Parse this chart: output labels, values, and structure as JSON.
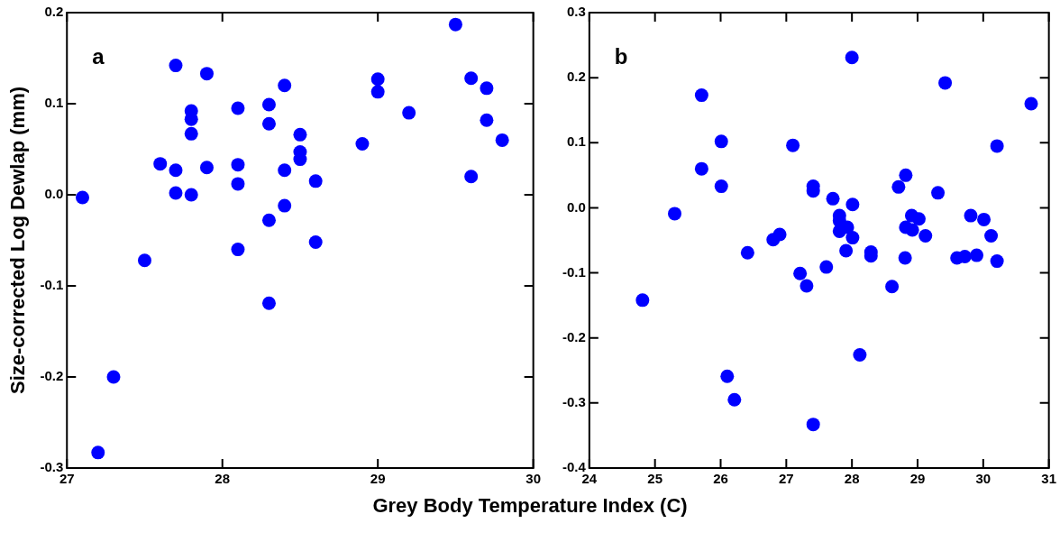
{
  "chart_data": [
    {
      "type": "scatter",
      "ylabel": "Size-corrected Log Dewlap (mm)",
      "xlabel": "Grey Body Temperature Index (C)",
      "annotations": [
        "a"
      ],
      "marker": "circle",
      "grid": false,
      "legend": false,
      "xlim": [
        27,
        30
      ],
      "xticks": [
        27,
        28,
        29,
        30
      ],
      "ylim": [
        -0.3,
        0.2
      ],
      "yticks": [
        {
          "value": -0.3,
          "label": "-0.3"
        },
        {
          "value": -0.2,
          "label": "-0.2"
        },
        {
          "value": -0.1,
          "label": "-0.1"
        },
        {
          "value": 0,
          "label": "0.0"
        },
        {
          "value": 0.1,
          "label": "0.1"
        },
        {
          "value": 0.2,
          "label": "0.2"
        }
      ],
      "series": [
        {
          "color": "#0000ff",
          "x": [
            27.1,
            27.2,
            27.3,
            27.5,
            27.6,
            27.7,
            27.7,
            27.7,
            27.8,
            27.8,
            27.8,
            27.8,
            27.9,
            27.9,
            28.1,
            28.1,
            28.1,
            28.1,
            28.3,
            28.3,
            28.3,
            28.3,
            28.4,
            28.4,
            28.4,
            28.5,
            28.5,
            28.5,
            28.6,
            28.6,
            28.9,
            29.0,
            29.0,
            29.2,
            29.5,
            29.6,
            29.6,
            29.7,
            29.7,
            29.8
          ],
          "values": [
            -0.003,
            -0.283,
            -0.2,
            -0.072,
            0.034,
            0.142,
            0.027,
            0.002,
            0.092,
            0.083,
            0.067,
            0.0,
            0.133,
            0.03,
            0.095,
            0.033,
            0.012,
            -0.06,
            0.099,
            0.078,
            -0.028,
            -0.119,
            0.12,
            0.027,
            -0.012,
            0.066,
            0.047,
            0.039,
            0.015,
            -0.052,
            0.056,
            0.127,
            0.113,
            0.09,
            0.187,
            0.128,
            0.02,
            0.117,
            0.082,
            0.06
          ]
        }
      ]
    },
    {
      "type": "scatter",
      "annotations": [
        "b"
      ],
      "marker": "circle",
      "grid": false,
      "legend": false,
      "xlim": [
        24,
        31
      ],
      "xticks": [
        24,
        25,
        26,
        27,
        28,
        29,
        30,
        31
      ],
      "ylim": [
        -0.4,
        0.3
      ],
      "yticks": [
        {
          "value": -0.4,
          "label": "-0.4"
        },
        {
          "value": -0.3,
          "label": "-0.3"
        },
        {
          "value": -0.2,
          "label": "-0.2"
        },
        {
          "value": -0.1,
          "label": "-0.1"
        },
        {
          "value": 0,
          "label": "0.0"
        },
        {
          "value": 0.1,
          "label": "0.1"
        },
        {
          "value": 0.2,
          "label": "0.2"
        },
        {
          "value": 0.3,
          "label": "0.3"
        }
      ],
      "series": [
        {
          "color": "#0000ff",
          "x": [
            28.0,
            29.42,
            30.73,
            25.71,
            26.01,
            27.1,
            30.21,
            25.71,
            26.01,
            27.41,
            27.41,
            27.71,
            28.01,
            28.82,
            28.71,
            29.31,
            25.3,
            27.81,
            27.81,
            28.91,
            29.02,
            29.81,
            30.01,
            27.93,
            27.81,
            28.82,
            28.92,
            29.12,
            30.12,
            28.01,
            26.9,
            26.8,
            26.41,
            27.91,
            28.29,
            28.29,
            28.81,
            29.6,
            29.72,
            29.9,
            30.21,
            27.21,
            27.31,
            27.61,
            28.61,
            24.81,
            26.1,
            26.21,
            28.12,
            27.41
          ],
          "values": [
            0.231,
            0.192,
            0.16,
            0.173,
            0.102,
            0.096,
            0.095,
            0.06,
            0.033,
            0.033,
            0.026,
            0.014,
            0.005,
            0.05,
            0.032,
            0.023,
            -0.009,
            -0.012,
            -0.02,
            -0.012,
            -0.017,
            -0.012,
            -0.018,
            -0.03,
            -0.036,
            -0.03,
            -0.034,
            -0.043,
            -0.043,
            -0.046,
            -0.041,
            -0.049,
            -0.069,
            -0.066,
            -0.068,
            -0.074,
            -0.077,
            -0.077,
            -0.075,
            -0.073,
            -0.082,
            -0.101,
            -0.12,
            -0.091,
            -0.121,
            -0.142,
            -0.259,
            -0.295,
            -0.226,
            -0.333
          ]
        }
      ]
    }
  ]
}
